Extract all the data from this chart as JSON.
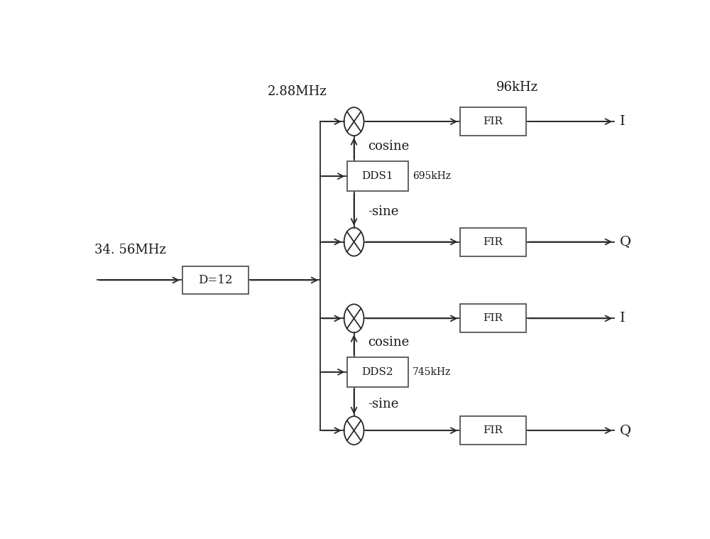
{
  "bg_color": "#ffffff",
  "line_color": "#2a2a2a",
  "box_edge_color": "#555555",
  "text_color": "#1a1a1a",
  "input_freq": "34. 56MHz",
  "decimator_label": "D=12",
  "output_freq_label": "2.88MHz",
  "sample_rate_label": "96kHz",
  "dds1_label": "DDS1",
  "dds1_freq": "695kHz",
  "dds2_label": "DDS2",
  "dds2_freq": "745kHz",
  "cosine_label": "cosine",
  "sine_label": "-sine",
  "fir_label": "FIR",
  "I_label": "I",
  "Q_label": "Q"
}
